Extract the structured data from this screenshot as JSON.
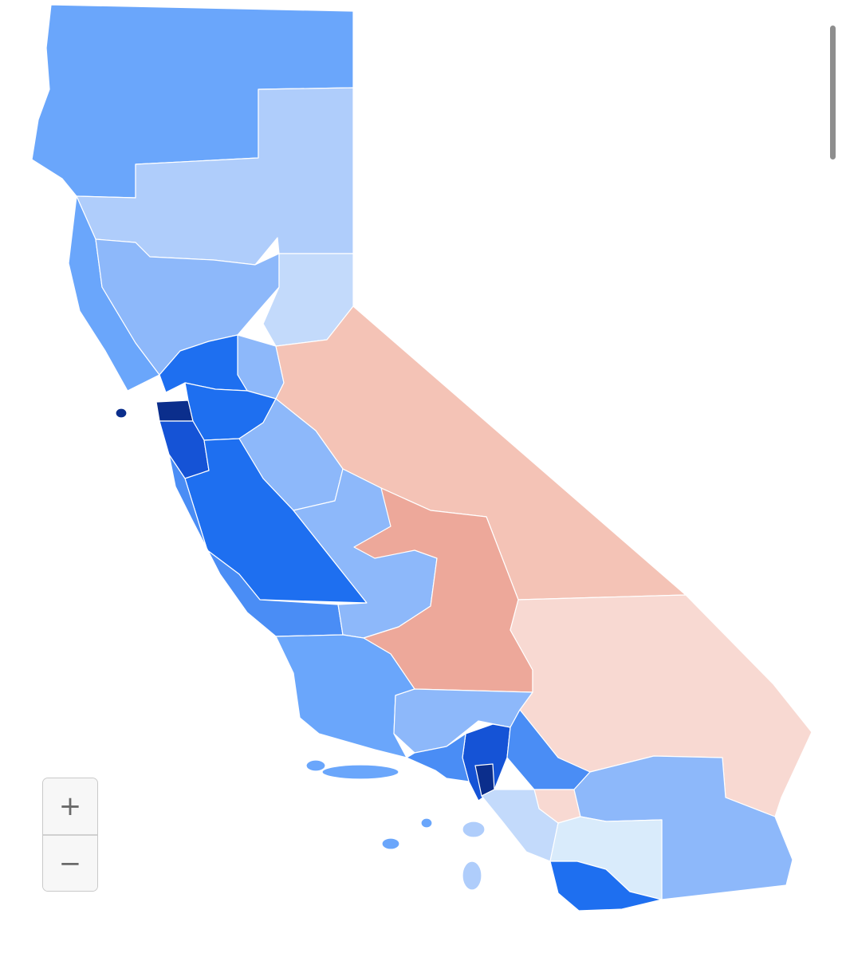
{
  "colors": {
    "dem_darkest": "#0b2e8c",
    "dem_dark": "#1553d6",
    "dem_strong": "#1e6ff0",
    "dem_medium": "#4a8df5",
    "dem_mid": "#6aa6fb",
    "dem_light": "#8db8fa",
    "dem_pale": "#afcdfb",
    "dem_faint": "#c3dafb",
    "dem_lightest": "#d9ebfb",
    "rep_light": "#f4c3b6",
    "rep_medium": "#eda89a",
    "rep_faint": "#f8d9d2"
  },
  "controls": {
    "zoom_in": "+",
    "zoom_out": "−"
  }
}
